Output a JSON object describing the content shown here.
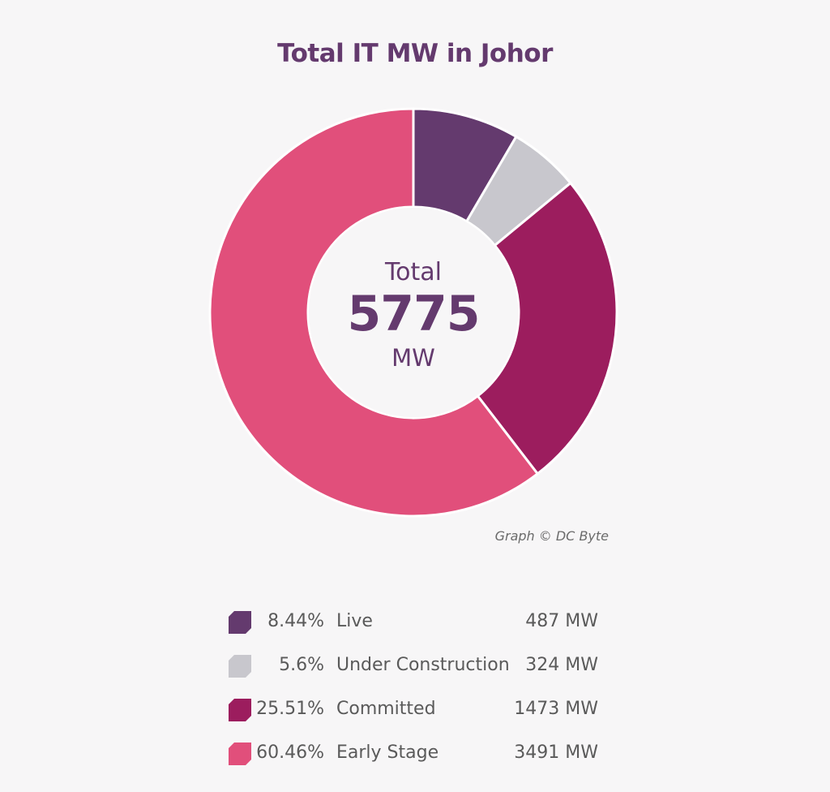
{
  "chart_data": {
    "type": "pie",
    "title": "Total IT MW in Johor",
    "center": {
      "label": "Total",
      "value": "5775",
      "unit": "MW"
    },
    "categories": [
      "Live",
      "Under Construction",
      "Committed",
      "Early Stage"
    ],
    "values": [
      487,
      324,
      1473,
      3491
    ],
    "percent_labels": [
      "8.44%",
      "5.6%",
      "25.51%",
      "60.46%"
    ],
    "value_labels": [
      "487 MW",
      "324 MW",
      "1473 MW",
      "3491 MW"
    ],
    "colors": [
      "#643a6e",
      "#c8c7cd",
      "#9c1d5e",
      "#e14f7b"
    ],
    "legend_position": "bottom"
  },
  "credit": "Graph © DC Byte"
}
